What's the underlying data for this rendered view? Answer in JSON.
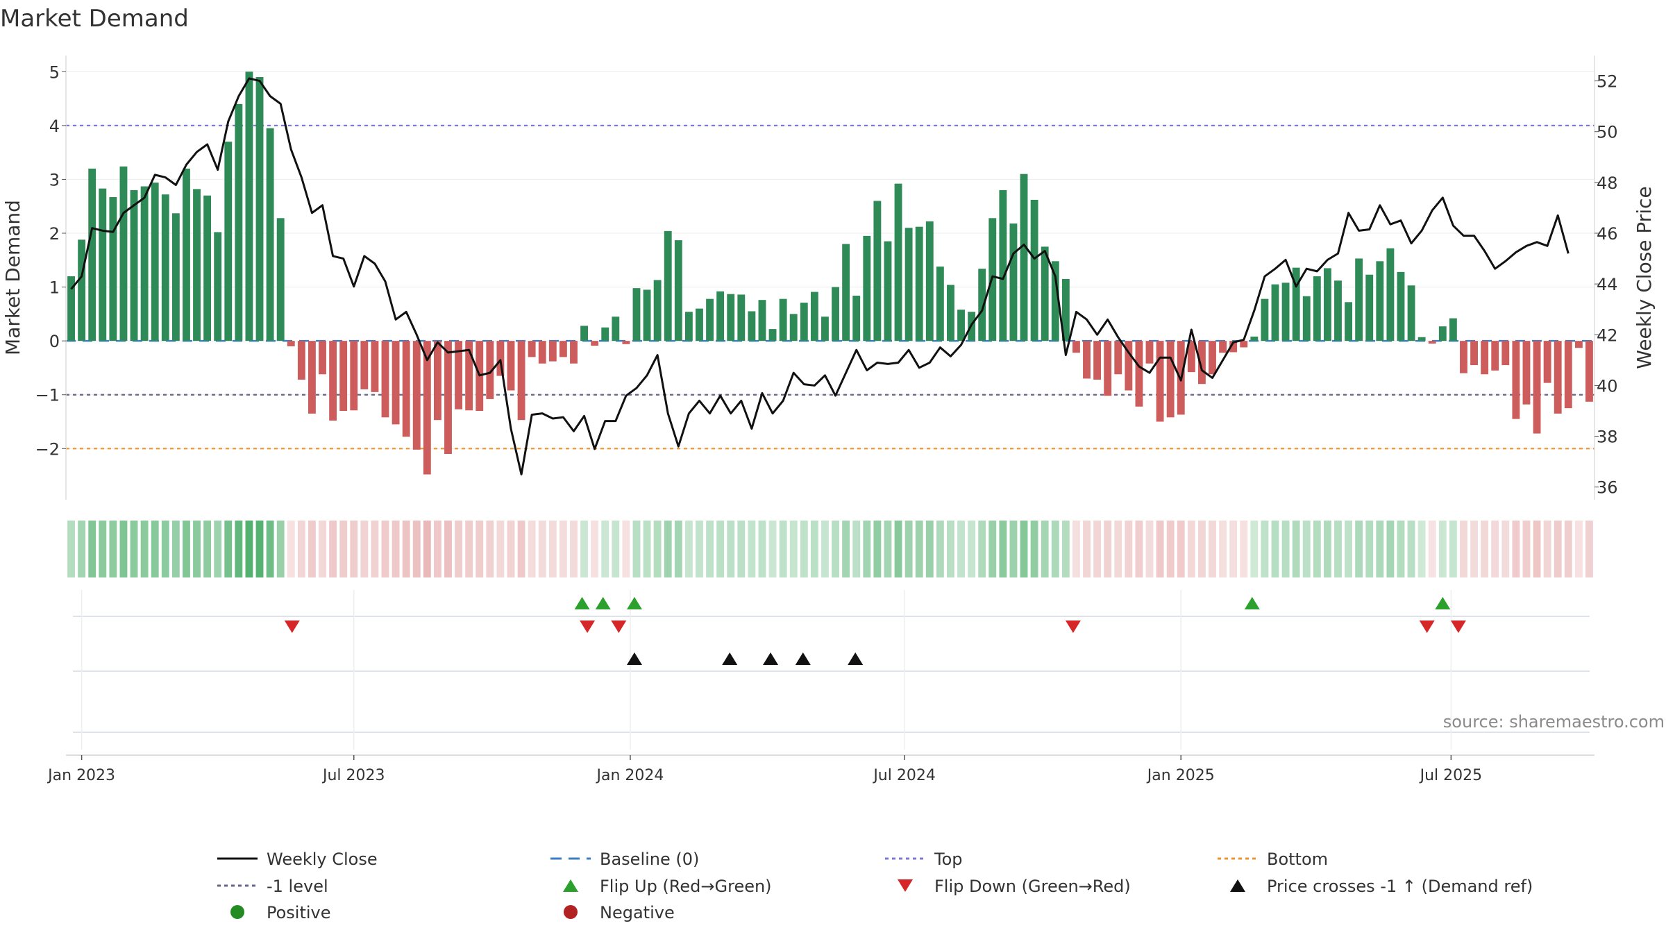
{
  "chart_data": {
    "type": "bar",
    "title": "Market Demand",
    "ylabel_left": "Market Demand",
    "ylabel_right": "Weekly Close Price",
    "ylim_left": [
      -2.95,
      5.3
    ],
    "ylim_right": [
      35.5,
      53.0
    ],
    "yticks_left": [
      -2,
      -1,
      0,
      1,
      2,
      3,
      4,
      5
    ],
    "yticks_left_labels": [
      "−2",
      "−1",
      "0",
      "1",
      "2",
      "3",
      "4",
      "5"
    ],
    "yticks_right": [
      36,
      38,
      40,
      42,
      44,
      46,
      48,
      50,
      52
    ],
    "x_ticks": [
      {
        "label": "Jan 2023",
        "week": 1
      },
      {
        "label": "Jul 2023",
        "week": 27
      },
      {
        "label": "Jan 2024",
        "week": 53.4
      },
      {
        "label": "Jul 2024",
        "week": 79.6
      },
      {
        "label": "Jan 2025",
        "week": 106
      },
      {
        "label": "Jul 2025",
        "week": 131.8
      }
    ],
    "reference_lines": [
      {
        "name": "Top",
        "value": 4,
        "color": "#7b7bd6"
      },
      {
        "name": "-1 level",
        "value": -1,
        "color": "#666688"
      },
      {
        "name": "Bottom",
        "value": -2,
        "color": "#f0932b"
      },
      {
        "name": "Baseline (0)",
        "value": 0,
        "color": "#3a7fc1"
      }
    ],
    "colors": {
      "positive_bar": "#2e8b57",
      "negative_bar": "#cd5c5c",
      "price_line": "#111111",
      "flip_up": "#2ca02c",
      "flip_down": "#d62728",
      "cross_marker": "#111111",
      "positive_dot": "#228b22",
      "negative_dot": "#b22222"
    },
    "demand": [
      1.2,
      1.88,
      3.2,
      2.83,
      2.67,
      3.24,
      2.8,
      2.87,
      2.94,
      2.72,
      2.37,
      3.2,
      2.82,
      2.7,
      2.02,
      3.7,
      4.4,
      5.0,
      4.9,
      3.95,
      2.28,
      -0.1,
      -0.72,
      -1.35,
      -0.62,
      -1.48,
      -1.3,
      -1.29,
      -0.9,
      -0.95,
      -1.42,
      -1.55,
      -1.78,
      -2.02,
      -2.48,
      -1.47,
      -2.1,
      -1.27,
      -1.29,
      -1.3,
      -1.08,
      -0.65,
      -0.92,
      -1.47,
      -0.3,
      -0.42,
      -0.38,
      -0.3,
      -0.42,
      0.28,
      -0.09,
      0.25,
      0.45,
      -0.06,
      0.98,
      0.95,
      1.13,
      2.04,
      1.87,
      0.54,
      0.6,
      0.78,
      0.92,
      0.87,
      0.86,
      0.55,
      0.76,
      0.22,
      0.78,
      0.5,
      0.71,
      0.91,
      0.45,
      1.0,
      1.8,
      0.84,
      1.95,
      2.6,
      1.85,
      2.92,
      2.1,
      2.12,
      2.22,
      1.38,
      1.04,
      0.58,
      0.54,
      1.34,
      2.28,
      2.8,
      2.18,
      3.1,
      2.62,
      1.75,
      1.48,
      1.15,
      -0.22,
      -0.7,
      -0.72,
      -1.02,
      -0.62,
      -0.92,
      -1.22,
      -0.42,
      -1.5,
      -1.42,
      -1.37,
      -0.58,
      -0.8,
      -0.62,
      -0.22,
      -0.21,
      -0.12,
      0.08,
      0.78,
      1.05,
      1.08,
      1.36,
      0.83,
      1.2,
      1.35,
      1.12,
      0.72,
      1.53,
      1.23,
      1.48,
      1.72,
      1.28,
      1.03,
      0.07,
      -0.05,
      0.27,
      0.42,
      -0.6,
      -0.45,
      -0.62,
      -0.55,
      -0.45,
      -1.45,
      -1.18,
      -1.72,
      -0.78,
      -1.35,
      -1.25,
      -0.13,
      -1.13
    ],
    "price": [
      43.8,
      44.3,
      46.2,
      46.1,
      46.05,
      46.8,
      47.1,
      47.4,
      48.3,
      48.2,
      47.9,
      48.7,
      49.2,
      49.5,
      48.5,
      50.4,
      51.4,
      52.1,
      52.0,
      51.4,
      51.1,
      49.3,
      48.2,
      46.8,
      47.1,
      45.1,
      45.0,
      43.9,
      45.1,
      44.8,
      44.1,
      42.6,
      42.9,
      42.0,
      41.0,
      41.7,
      41.3,
      41.35,
      41.4,
      40.4,
      40.5,
      41.0,
      38.3,
      36.5,
      38.85,
      38.9,
      38.7,
      38.75,
      38.2,
      38.8,
      37.5,
      38.6,
      38.6,
      39.6,
      39.9,
      40.4,
      41.2,
      38.9,
      37.6,
      38.9,
      39.4,
      38.9,
      39.6,
      38.9,
      39.4,
      38.3,
      39.7,
      38.9,
      39.4,
      40.5,
      40.05,
      40.0,
      40.4,
      39.6,
      40.5,
      41.4,
      40.6,
      40.9,
      40.85,
      40.9,
      41.4,
      40.7,
      40.9,
      41.5,
      41.15,
      41.6,
      42.4,
      42.95,
      44.3,
      44.2,
      45.2,
      45.55,
      45.0,
      45.3,
      44.3,
      41.2,
      42.9,
      42.6,
      42.0,
      42.6,
      41.9,
      41.3,
      40.75,
      40.5,
      41.1,
      41.1,
      40.2,
      42.2,
      40.6,
      40.3,
      41.0,
      41.7,
      41.8,
      42.95,
      44.3,
      44.6,
      44.95,
      43.9,
      44.6,
      44.5,
      44.95,
      45.2,
      46.8,
      46.1,
      46.15,
      47.1,
      46.35,
      46.5,
      45.6,
      46.1,
      46.9,
      47.4,
      46.3,
      45.9,
      45.9,
      45.3,
      44.6,
      44.9,
      45.25,
      45.5,
      45.65,
      45.5,
      46.7,
      45.2
    ],
    "heat_strip": "weekly demand intensity (green = positive, red = negative)",
    "flip_up_weeks": [
      48.8,
      50.8,
      53.8,
      112.8,
      131.0
    ],
    "flip_down_weeks": [
      21.1,
      49.3,
      52.3,
      95.7,
      129.5,
      132.5
    ],
    "price_cross_weeks": [
      53.8,
      62.9,
      66.8,
      69.9,
      74.9
    ],
    "source": "source: sharemaestro.com",
    "legend": [
      {
        "label": "Weekly Close",
        "kind": "line-solid",
        "color": "#111111"
      },
      {
        "label": "Baseline (0)",
        "kind": "line-dashed",
        "color": "#3a7fc1"
      },
      {
        "label": "Top",
        "kind": "line-dotted",
        "color": "#7b7bd6"
      },
      {
        "label": "Bottom",
        "kind": "line-dotted",
        "color": "#f0932b"
      },
      {
        "label": "-1 level",
        "kind": "line-dotted",
        "color": "#666688"
      },
      {
        "label": "Flip Up (Red→Green)",
        "kind": "tri-up",
        "color": "#2ca02c"
      },
      {
        "label": "Flip Down (Green→Red)",
        "kind": "tri-down",
        "color": "#d62728"
      },
      {
        "label": "Price crosses -1 ↑ (Demand ref)",
        "kind": "tri-up",
        "color": "#111111"
      },
      {
        "label": "Positive",
        "kind": "dot",
        "color": "#228b22"
      },
      {
        "label": "Negative",
        "kind": "dot",
        "color": "#b22222"
      }
    ]
  }
}
